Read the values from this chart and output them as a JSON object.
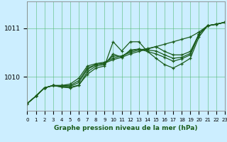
{
  "xlabel": "Graphe pression niveau de la mer (hPa)",
  "bg_color": "#cceeff",
  "grid_color": "#55bb77",
  "line_color": "#1a5c1a",
  "xlim": [
    0,
    23
  ],
  "ylim": [
    1009.3,
    1011.55
  ],
  "yticks": [
    1010,
    1011
  ],
  "xticks": [
    0,
    1,
    2,
    3,
    4,
    5,
    6,
    7,
    8,
    9,
    10,
    11,
    12,
    13,
    14,
    15,
    16,
    17,
    18,
    19,
    20,
    21,
    22,
    23
  ],
  "series": [
    [
      1009.45,
      1009.6,
      1009.77,
      1009.82,
      1009.79,
      1009.78,
      1009.83,
      1010.05,
      1010.18,
      1010.22,
      1010.72,
      1010.53,
      1010.72,
      1010.72,
      1010.52,
      1010.38,
      1010.25,
      1010.18,
      1010.27,
      1010.38,
      1010.82,
      1011.05,
      1011.08,
      1011.12
    ],
    [
      1009.45,
      1009.6,
      1009.77,
      1009.82,
      1009.82,
      1009.82,
      1009.92,
      1010.18,
      1010.25,
      1010.28,
      1010.35,
      1010.4,
      1010.47,
      1010.52,
      1010.57,
      1010.62,
      1010.67,
      1010.72,
      1010.77,
      1010.82,
      1010.92,
      1011.05,
      1011.08,
      1011.12
    ],
    [
      1009.45,
      1009.6,
      1009.77,
      1009.82,
      1009.79,
      1009.77,
      1009.82,
      1010.1,
      1010.22,
      1010.25,
      1010.47,
      1010.4,
      1010.55,
      1010.57,
      1010.52,
      1010.47,
      1010.4,
      1010.32,
      1010.37,
      1010.45,
      1010.87,
      1011.05,
      1011.08,
      1011.12
    ],
    [
      1009.45,
      1009.6,
      1009.77,
      1009.82,
      1009.82,
      1009.85,
      1009.97,
      1010.22,
      1010.27,
      1010.3,
      1010.38,
      1010.43,
      1010.5,
      1010.55,
      1010.58,
      1010.62,
      1010.52,
      1010.45,
      1010.45,
      1010.52,
      1010.88,
      1011.05,
      1011.08,
      1011.12
    ],
    [
      1009.45,
      1009.6,
      1009.77,
      1009.82,
      1009.8,
      1009.8,
      1009.88,
      1010.15,
      1010.25,
      1010.27,
      1010.43,
      1010.42,
      1010.53,
      1010.57,
      1010.55,
      1010.53,
      1010.45,
      1010.38,
      1010.4,
      1010.48,
      1010.88,
      1011.05,
      1011.08,
      1011.12
    ]
  ]
}
